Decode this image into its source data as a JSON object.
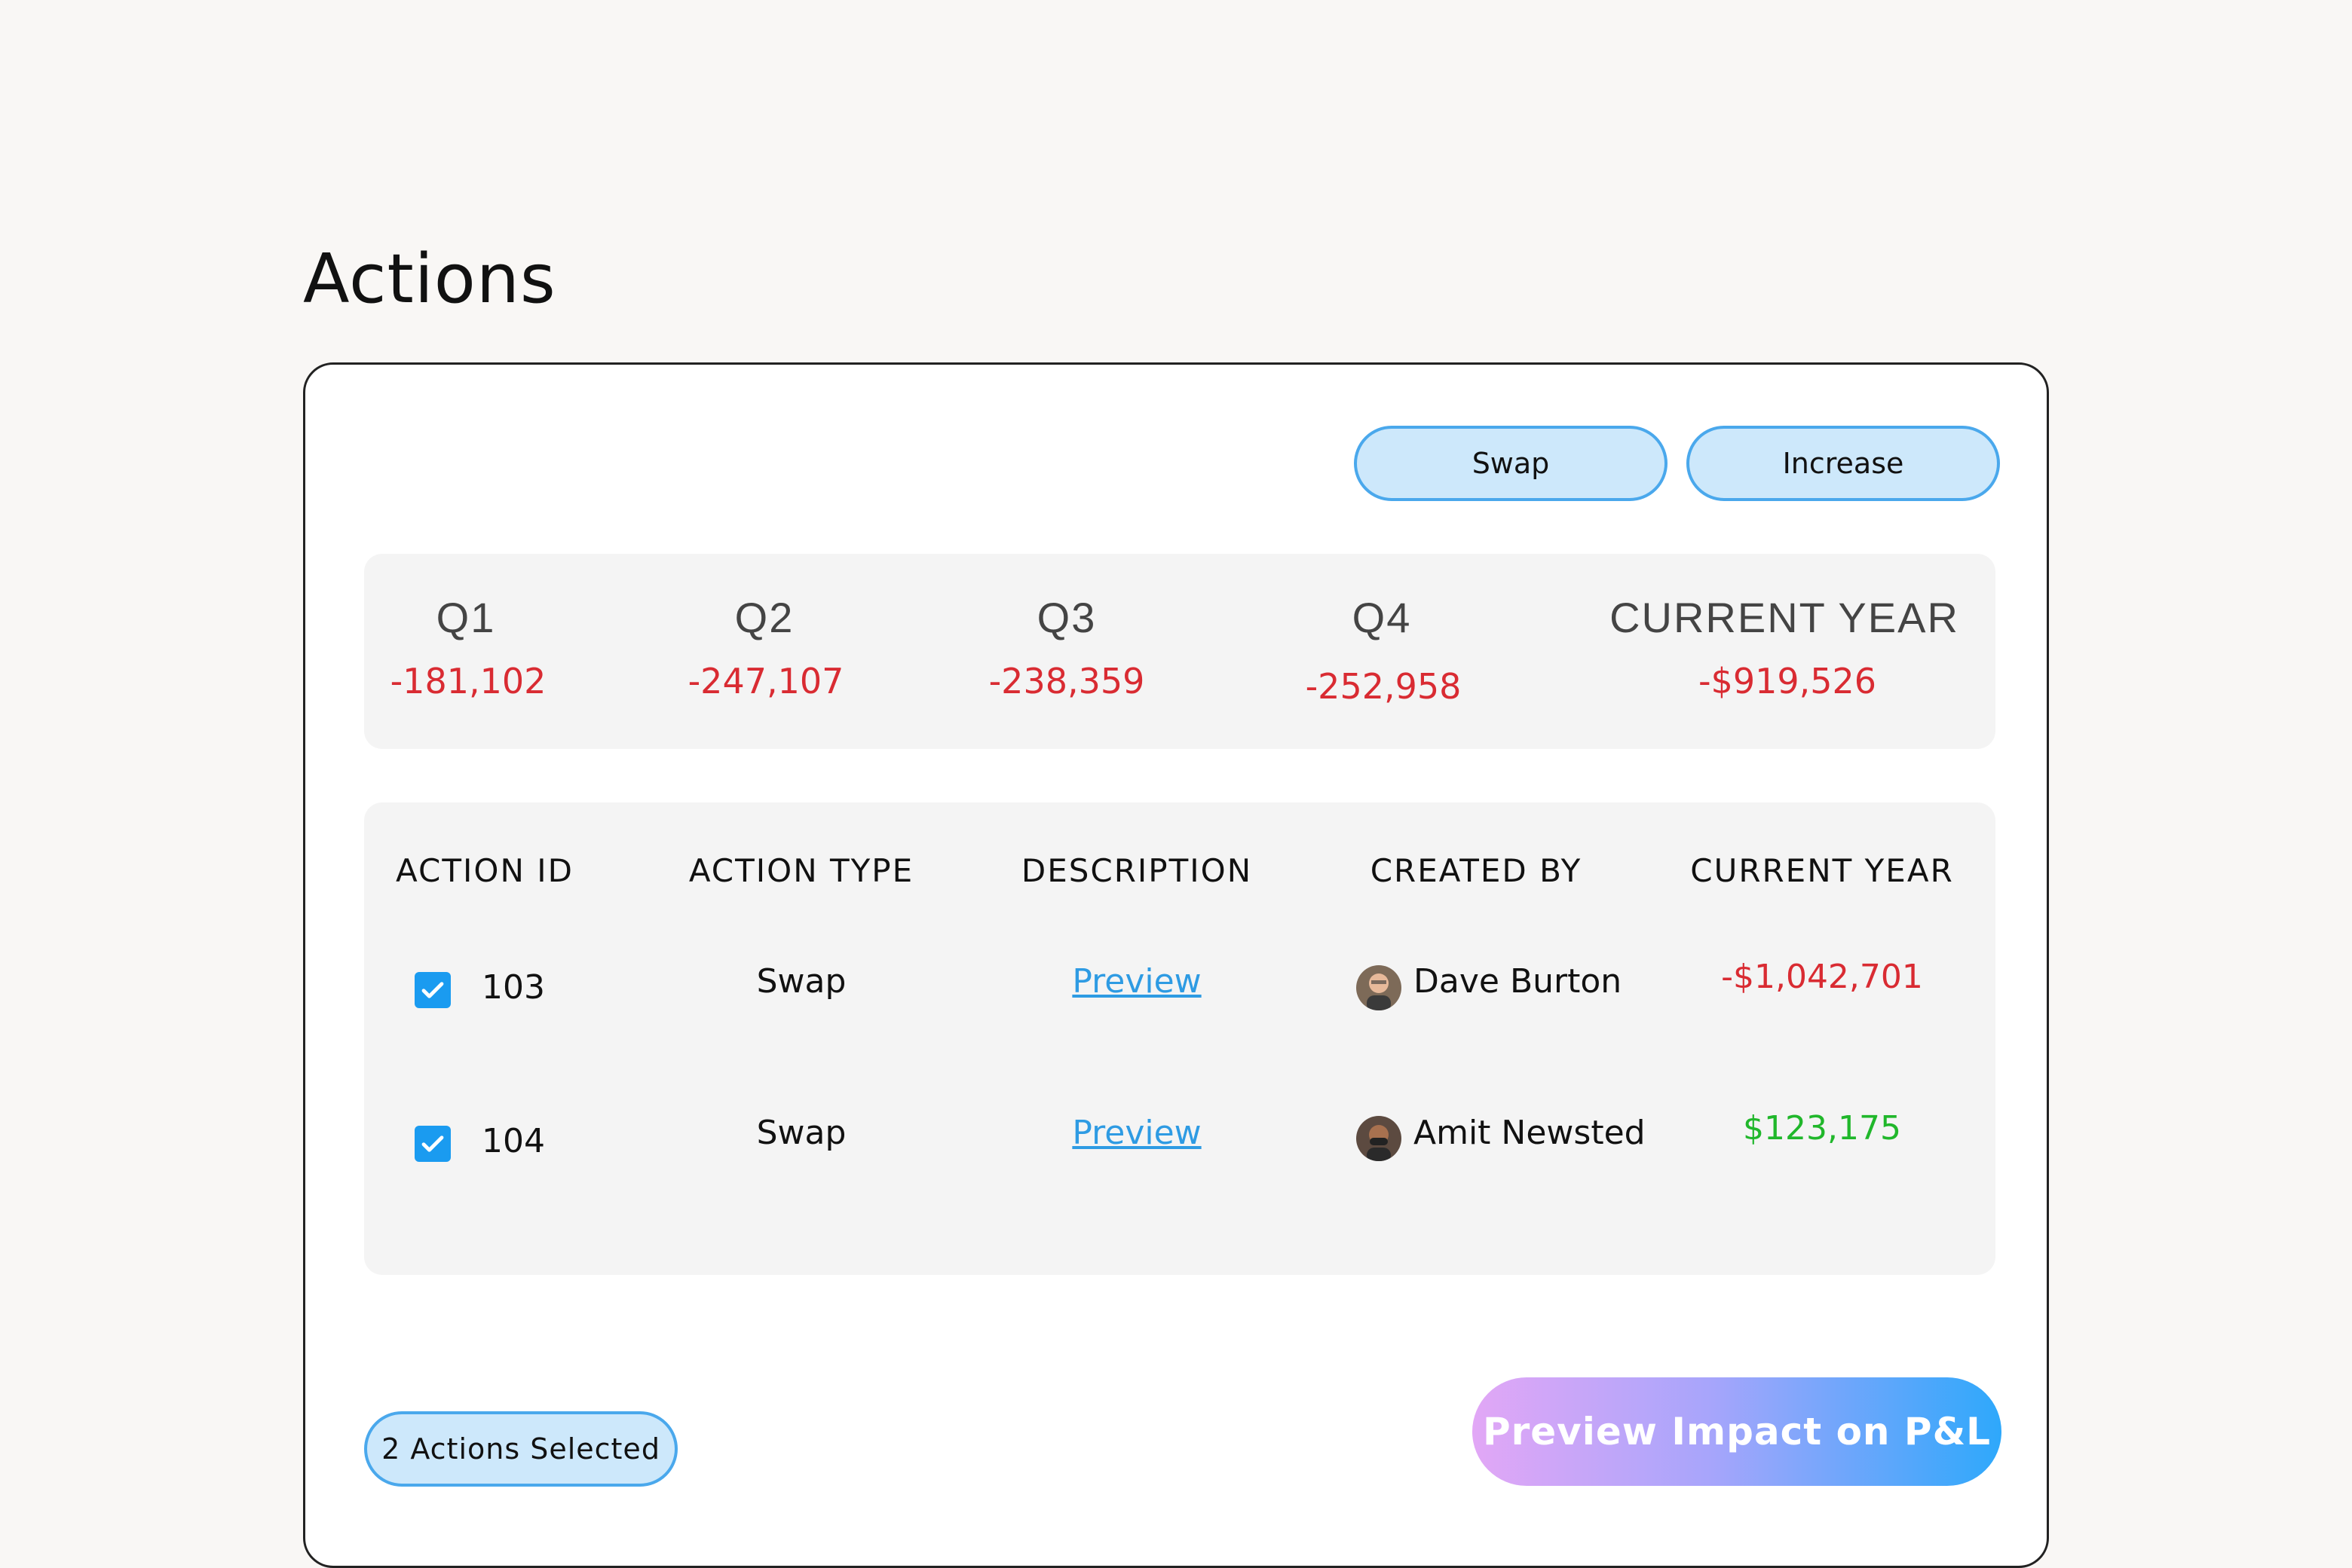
{
  "page": {
    "title": "Actions"
  },
  "toolbar": {
    "swap_label": "Swap",
    "increase_label": "Increase"
  },
  "summary": {
    "quarters": [
      {
        "label": "Q1",
        "value": "-181,102"
      },
      {
        "label": "Q2",
        "value": "-247,107"
      },
      {
        "label": "Q3",
        "value": "-238,359"
      },
      {
        "label": "Q4",
        "value": "-252,958"
      },
      {
        "label": "CURRENT YEAR",
        "value": "-$919,526"
      }
    ]
  },
  "table": {
    "headers": [
      "ACTION ID",
      "ACTION TYPE",
      "DESCRIPTION",
      "CREATED BY",
      "CURRENT YEAR"
    ],
    "rows": [
      {
        "checked": true,
        "id": "103",
        "type": "Swap",
        "description": "Preview",
        "created_by": "Dave Burton",
        "current_year": "-$1,042,701"
      },
      {
        "checked": true,
        "id": "104",
        "type": "Swap",
        "description": "Preview",
        "created_by": "Amit Newsted",
        "current_year": "$123,175"
      }
    ]
  },
  "footer": {
    "selected_label": "2 Actions Selected",
    "cta_label": "Preview Impact on P&L"
  },
  "colors": {
    "negative": "#d92b32",
    "positive": "#20b72b",
    "accent": "#1a9bf0"
  }
}
